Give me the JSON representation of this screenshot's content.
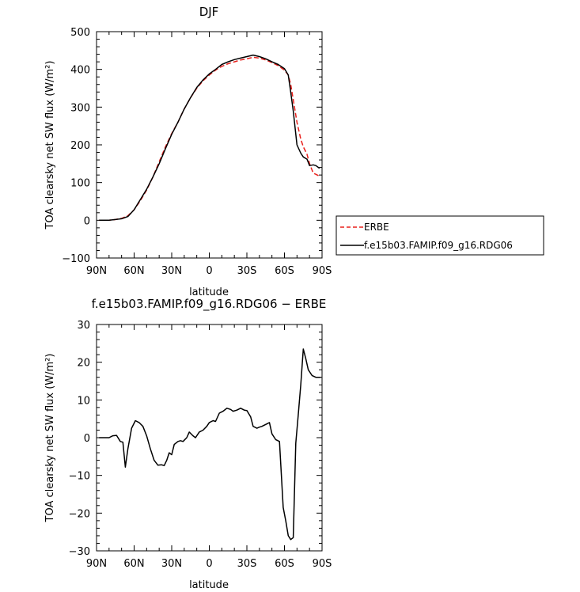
{
  "chart_data": [
    {
      "type": "line",
      "title": "DJF",
      "xlabel": "latitude",
      "ylabel": "TOA clearsky net SW flux (W/m²)",
      "xlim": [
        90,
        -90
      ],
      "ylim": [
        -100,
        500
      ],
      "x_ticks": [
        90,
        60,
        30,
        0,
        -30,
        -60,
        -90
      ],
      "x_tick_labels": [
        "90N",
        "60N",
        "30N",
        "0",
        "30S",
        "60S",
        "90S"
      ],
      "y_ticks": [
        -100,
        0,
        100,
        200,
        300,
        400,
        500
      ],
      "y_tick_labels": [
        "−100",
        "0",
        "100",
        "200",
        "300",
        "400",
        "500"
      ],
      "legend": {
        "placement": "right"
      },
      "x": [
        88,
        85,
        80,
        75,
        70,
        65,
        60,
        55,
        50,
        45,
        40,
        35,
        30,
        25,
        20,
        15,
        10,
        5,
        0,
        -5,
        -10,
        -15,
        -20,
        -25,
        -30,
        -35,
        -40,
        -45,
        -50,
        -55,
        -60,
        -63,
        -65,
        -67,
        -70,
        -73,
        -75,
        -78,
        -80,
        -83,
        -85,
        -88
      ],
      "series": [
        {
          "name": "ERBE",
          "color": "#e8201c",
          "dash": "dashed",
          "values": [
            0,
            0,
            0,
            2,
            5,
            12,
            28,
            52,
            80,
            115,
            155,
            195,
            230,
            260,
            295,
            325,
            350,
            370,
            385,
            398,
            408,
            415,
            420,
            425,
            428,
            432,
            430,
            425,
            418,
            410,
            398,
            385,
            360,
            320,
            260,
            215,
            195,
            175,
            150,
            125,
            122,
            117
          ]
        },
        {
          "name": "f.e15b03.FAMIP.f09_g16.RDG06",
          "color": "#000000",
          "dash": "solid",
          "values": [
            0,
            0,
            0,
            2,
            4,
            10,
            28,
            55,
            82,
            115,
            150,
            190,
            228,
            260,
            295,
            325,
            352,
            372,
            388,
            400,
            413,
            420,
            426,
            430,
            434,
            438,
            434,
            428,
            420,
            413,
            402,
            385,
            340,
            290,
            200,
            178,
            168,
            162,
            145,
            147,
            145,
            138
          ]
        }
      ]
    },
    {
      "type": "line",
      "title": "f.e15b03.FAMIP.f09_g16.RDG06 − ERBE",
      "xlabel": "latitude",
      "ylabel": "TOA clearsky net SW flux (W/m²)",
      "xlim": [
        90,
        -90
      ],
      "ylim": [
        -30,
        30
      ],
      "x_ticks": [
        90,
        60,
        30,
        0,
        -30,
        -60,
        -90
      ],
      "x_tick_labels": [
        "90N",
        "60N",
        "30N",
        "0",
        "30S",
        "60S",
        "90S"
      ],
      "y_ticks": [
        -30,
        -20,
        -10,
        0,
        10,
        20,
        30
      ],
      "y_tick_labels": [
        "−30",
        "−20",
        "−10",
        "0",
        "10",
        "20",
        "30"
      ],
      "x": [
        88,
        85,
        82,
        80,
        77,
        74,
        71,
        69,
        67,
        65,
        62,
        59,
        56,
        53,
        50,
        47,
        44,
        41,
        38,
        36,
        34,
        32,
        30,
        28,
        25,
        23,
        21,
        18,
        16,
        13,
        11,
        8,
        5,
        2,
        0,
        -3,
        -5,
        -8,
        -11,
        -14,
        -17,
        -19,
        -22,
        -25,
        -28,
        -30,
        -33,
        -35,
        -38,
        -40,
        -42,
        -45,
        -48,
        -50,
        -53,
        -56,
        -59,
        -61,
        -63,
        -65,
        -67,
        -69,
        -71,
        -73,
        -75,
        -77,
        -79,
        -82,
        -85,
        -87,
        -89
      ],
      "series": [
        {
          "name": "",
          "color": "#000000",
          "dash": "solid",
          "values": [
            0,
            0,
            0,
            0,
            0.5,
            0.6,
            -1,
            -1.2,
            -7.8,
            -3,
            2.5,
            4.5,
            4,
            3,
            0.5,
            -3,
            -6,
            -7.3,
            -7.2,
            -7.4,
            -6,
            -4,
            -4.5,
            -1.8,
            -1,
            -0.8,
            -1,
            0,
            1.5,
            0.5,
            0,
            1.5,
            2,
            3,
            4,
            4.5,
            4.3,
            6.5,
            7,
            7.8,
            7.5,
            7,
            7.3,
            7.8,
            7.3,
            7.2,
            5.5,
            3,
            2.5,
            2.8,
            3,
            3.5,
            4,
            1,
            -0.5,
            -1,
            -18.5,
            -22,
            -26,
            -27,
            -26.5,
            -1.5,
            6,
            14,
            23.5,
            21,
            18,
            16.5,
            16,
            16,
            16
          ]
        }
      ]
    }
  ]
}
